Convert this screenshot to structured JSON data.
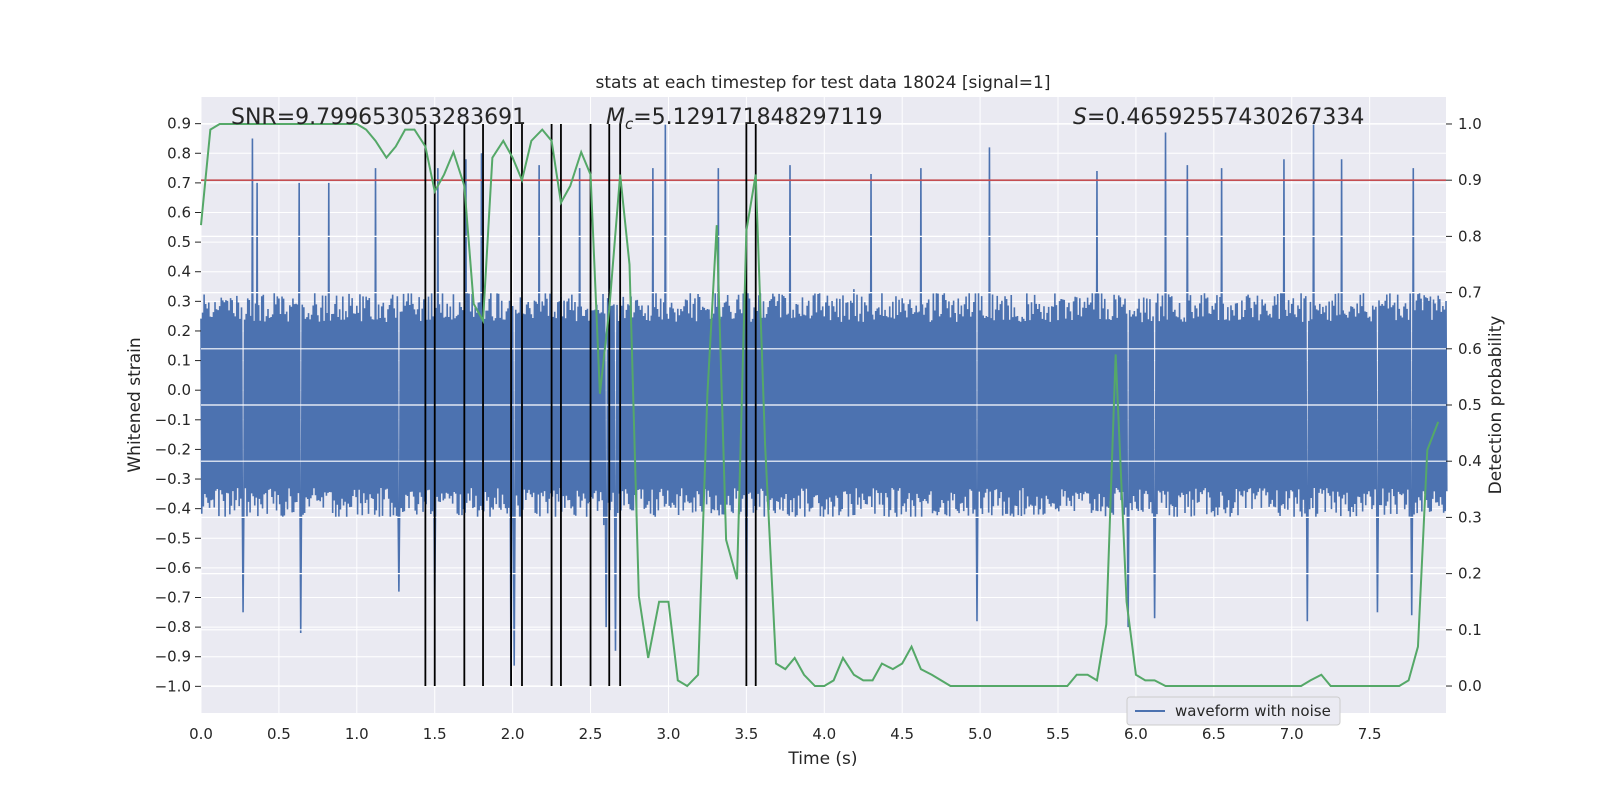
{
  "chart_data": {
    "type": "line",
    "title": "stats at each timestep for test data 18024 [signal=1]",
    "xlabel": "Time (s)",
    "ylabel_left": "Whitened strain",
    "ylabel_right": "Detection probability",
    "xlim": [
      0.0,
      7.99
    ],
    "ylim_left": [
      -1.09,
      0.99
    ],
    "ylim_right": [
      -0.048,
      1.048
    ],
    "x_ticks": [
      "0.0",
      "0.5",
      "1.0",
      "1.5",
      "2.0",
      "2.5",
      "3.0",
      "3.5",
      "4.0",
      "4.5",
      "5.0",
      "5.5",
      "6.0",
      "6.5",
      "7.0",
      "7.5"
    ],
    "x_tick_values": [
      0.0,
      0.5,
      1.0,
      1.5,
      2.0,
      2.5,
      3.0,
      3.5,
      4.0,
      4.5,
      5.0,
      5.5,
      6.0,
      6.5,
      7.0,
      7.5
    ],
    "left_ticks": [
      "0.9",
      "0.8",
      "0.7",
      "0.6",
      "0.5",
      "0.4",
      "0.3",
      "0.2",
      "0.1",
      "0.0",
      "−0.1",
      "−0.2",
      "−0.3",
      "−0.4",
      "−0.5",
      "−0.6",
      "−0.7",
      "−0.8",
      "−0.9",
      "−1.0"
    ],
    "left_tick_values": [
      0.9,
      0.8,
      0.7,
      0.6,
      0.5,
      0.4,
      0.3,
      0.2,
      0.1,
      0.0,
      -0.1,
      -0.2,
      -0.3,
      -0.4,
      -0.5,
      -0.6,
      -0.7,
      -0.8,
      -0.9,
      -1.0
    ],
    "right_ticks": [
      "1.0",
      "0.9",
      "0.8",
      "0.7",
      "0.6",
      "0.5",
      "0.4",
      "0.3",
      "0.2",
      "0.1",
      "0.0"
    ],
    "right_tick_values": [
      1.0,
      0.9,
      0.8,
      0.7,
      0.6,
      0.5,
      0.4,
      0.3,
      0.2,
      0.1,
      0.0
    ],
    "annotations": {
      "snr": "SNR=9.799653053283691",
      "mc_symbol": "M",
      "mc_subscript": "c",
      "mc_value": "=5.129171848297119",
      "s_symbol": "S",
      "s_value": "=0.46592557430267334"
    },
    "threshold": {
      "value": 0.9,
      "axis": "right",
      "color": "#c44e52"
    },
    "detection_lines": [
      1.44,
      1.5,
      1.69,
      1.81,
      1.99,
      2.06,
      2.25,
      2.31,
      2.5,
      2.62,
      2.69,
      3.5,
      3.56
    ],
    "waveform": {
      "name": "waveform with noise",
      "color": "#4c72b0",
      "duration_s": 8.0,
      "sample_count": 1600,
      "typical_range": [
        -0.43,
        0.33
      ],
      "noise_sigma": 0.13,
      "peak_times": [
        0.33,
        0.36,
        0.63,
        0.82,
        1.12,
        1.52,
        1.7,
        1.8,
        2.01,
        2.17,
        2.43,
        2.62,
        2.9,
        2.98,
        3.32,
        3.78,
        4.3,
        4.62,
        5.06,
        5.75,
        6.19,
        6.33,
        6.55,
        6.95,
        7.14,
        7.32,
        7.78
      ],
      "peak_values": [
        0.85,
        0.7,
        0.7,
        0.7,
        0.75,
        0.75,
        0.78,
        0.8,
        0.75,
        0.76,
        0.75,
        0.79,
        0.75,
        0.9,
        0.75,
        0.76,
        0.73,
        0.75,
        0.82,
        0.74,
        0.87,
        0.76,
        0.75,
        0.78,
        0.9,
        0.78,
        0.75
      ],
      "trough_times": [
        0.27,
        0.64,
        1.27,
        1.5,
        1.99,
        2.01,
        2.6,
        2.66,
        3.5,
        4.98,
        5.95,
        6.12,
        7.1,
        7.55,
        7.77
      ],
      "trough_values": [
        -0.75,
        -0.82,
        -0.68,
        -0.69,
        -1.0,
        -0.93,
        -0.8,
        -0.88,
        -0.81,
        -0.78,
        -0.8,
        -0.77,
        -0.78,
        -0.75,
        -0.76
      ]
    },
    "detection_probability": {
      "color": "#55a868",
      "x": [
        0.0,
        0.06,
        0.12,
        0.25,
        0.5,
        0.75,
        0.94,
        1.0,
        1.06,
        1.12,
        1.19,
        1.25,
        1.31,
        1.37,
        1.44,
        1.5,
        1.56,
        1.62,
        1.69,
        1.75,
        1.81,
        1.87,
        1.94,
        2.0,
        2.06,
        2.12,
        2.19,
        2.25,
        2.31,
        2.37,
        2.44,
        2.5,
        2.56,
        2.62,
        2.69,
        2.75,
        2.81,
        2.87,
        2.94,
        3.0,
        3.06,
        3.12,
        3.19,
        3.25,
        3.31,
        3.37,
        3.44,
        3.5,
        3.56,
        3.62,
        3.69,
        3.75,
        3.81,
        3.87,
        3.94,
        4.0,
        4.06,
        4.12,
        4.19,
        4.25,
        4.31,
        4.37,
        4.44,
        4.5,
        4.56,
        4.62,
        4.69,
        4.75,
        4.81,
        4.87,
        5.0,
        5.25,
        5.5,
        5.56,
        5.62,
        5.69,
        5.75,
        5.81,
        5.87,
        5.94,
        6.0,
        6.06,
        6.12,
        6.19,
        6.25,
        6.5,
        6.75,
        7.0,
        7.06,
        7.12,
        7.19,
        7.25,
        7.37,
        7.5,
        7.62,
        7.69,
        7.75,
        7.81,
        7.87,
        7.94
      ],
      "y": [
        0.82,
        0.99,
        1.0,
        1.0,
        1.0,
        1.0,
        1.0,
        1.0,
        0.99,
        0.97,
        0.94,
        0.96,
        0.99,
        0.99,
        0.96,
        0.88,
        0.91,
        0.95,
        0.89,
        0.68,
        0.65,
        0.94,
        0.97,
        0.94,
        0.9,
        0.97,
        0.99,
        0.97,
        0.86,
        0.89,
        0.95,
        0.91,
        0.52,
        0.67,
        0.91,
        0.75,
        0.16,
        0.05,
        0.15,
        0.15,
        0.01,
        0.0,
        0.02,
        0.52,
        0.82,
        0.26,
        0.19,
        0.81,
        0.91,
        0.43,
        0.04,
        0.03,
        0.05,
        0.02,
        0.0,
        0.0,
        0.01,
        0.05,
        0.02,
        0.01,
        0.01,
        0.04,
        0.03,
        0.04,
        0.07,
        0.03,
        0.02,
        0.01,
        0.0,
        0.0,
        0.0,
        0.0,
        0.0,
        0.0,
        0.02,
        0.02,
        0.01,
        0.11,
        0.59,
        0.15,
        0.02,
        0.01,
        0.01,
        0.0,
        0.0,
        0.0,
        0.0,
        0.0,
        0.0,
        0.01,
        0.02,
        0.0,
        0.0,
        0.0,
        0.0,
        0.0,
        0.01,
        0.07,
        0.42,
        0.47
      ]
    },
    "legend": {
      "label": "waveform with noise",
      "position": "lower-right"
    }
  }
}
